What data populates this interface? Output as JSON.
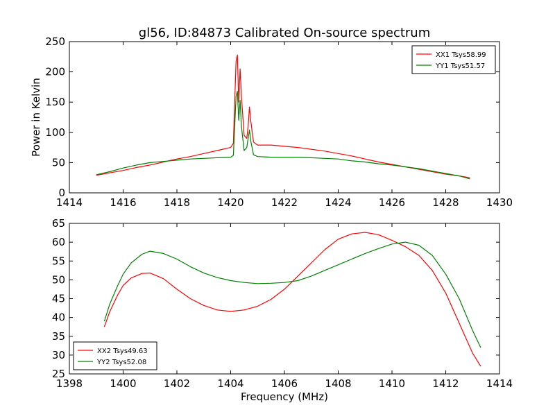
{
  "figure": {
    "title": "gl56, ID:84873 Calibrated On-source spectrum"
  },
  "chart_data": [
    {
      "type": "line",
      "title": "gl56, ID:84873 Calibrated On-source spectrum",
      "xlabel": "",
      "ylabel": "Power in Kelvin",
      "xlim": [
        1414,
        1430
      ],
      "ylim": [
        0,
        250
      ],
      "xticks": [
        1414,
        1416,
        1418,
        1420,
        1422,
        1424,
        1426,
        1428,
        1430
      ],
      "yticks": [
        0,
        50,
        100,
        150,
        200,
        250
      ],
      "grid": false,
      "legend_position": "upper-right",
      "series": [
        {
          "name": "XX1 Tsys58.99",
          "color": "#ff0000",
          "points": [
            [
              1415.0,
              29
            ],
            [
              1415.5,
              33
            ],
            [
              1416.0,
              37
            ],
            [
              1416.5,
              42
            ],
            [
              1417.0,
              46
            ],
            [
              1417.5,
              51
            ],
            [
              1418.0,
              56
            ],
            [
              1418.5,
              60
            ],
            [
              1419.0,
              65
            ],
            [
              1419.5,
              70
            ],
            [
              1420.0,
              75
            ],
            [
              1420.1,
              82
            ],
            [
              1420.15,
              150
            ],
            [
              1420.2,
              218
            ],
            [
              1420.25,
              228
            ],
            [
              1420.3,
              150
            ],
            [
              1420.35,
              205
            ],
            [
              1420.4,
              160
            ],
            [
              1420.5,
              95
            ],
            [
              1420.6,
              90
            ],
            [
              1420.65,
              110
            ],
            [
              1420.7,
              142
            ],
            [
              1420.75,
              118
            ],
            [
              1420.85,
              84
            ],
            [
              1421.0,
              79
            ],
            [
              1421.5,
              79
            ],
            [
              1422.0,
              77
            ],
            [
              1422.5,
              75
            ],
            [
              1423.0,
              72
            ],
            [
              1423.5,
              69
            ],
            [
              1424.0,
              65
            ],
            [
              1424.5,
              61
            ],
            [
              1425.0,
              56
            ],
            [
              1425.5,
              51
            ],
            [
              1426.0,
              47
            ],
            [
              1426.5,
              43
            ],
            [
              1427.0,
              39
            ],
            [
              1427.5,
              35
            ],
            [
              1428.0,
              31
            ],
            [
              1428.5,
              28
            ],
            [
              1428.9,
              25
            ]
          ]
        },
        {
          "name": "YY1 Tsys51.57",
          "color": "#008000",
          "points": [
            [
              1415.0,
              30
            ],
            [
              1415.5,
              35
            ],
            [
              1416.0,
              41
            ],
            [
              1416.5,
              46
            ],
            [
              1417.0,
              50
            ],
            [
              1417.5,
              52
            ],
            [
              1418.0,
              54
            ],
            [
              1418.5,
              56
            ],
            [
              1419.0,
              57
            ],
            [
              1419.5,
              58
            ],
            [
              1420.0,
              59
            ],
            [
              1420.1,
              62
            ],
            [
              1420.15,
              110
            ],
            [
              1420.2,
              160
            ],
            [
              1420.25,
              168
            ],
            [
              1420.3,
              120
            ],
            [
              1420.35,
              153
            ],
            [
              1420.4,
              110
            ],
            [
              1420.5,
              70
            ],
            [
              1420.6,
              75
            ],
            [
              1420.65,
              90
            ],
            [
              1420.7,
              104
            ],
            [
              1420.75,
              85
            ],
            [
              1420.85,
              63
            ],
            [
              1421.0,
              60
            ],
            [
              1421.5,
              59
            ],
            [
              1422.0,
              59
            ],
            [
              1422.5,
              59
            ],
            [
              1423.0,
              58
            ],
            [
              1423.5,
              57
            ],
            [
              1424.0,
              56
            ],
            [
              1424.5,
              53
            ],
            [
              1425.0,
              51
            ],
            [
              1425.5,
              48
            ],
            [
              1426.0,
              46
            ],
            [
              1426.5,
              43
            ],
            [
              1427.0,
              40
            ],
            [
              1427.5,
              36
            ],
            [
              1428.0,
              32
            ],
            [
              1428.5,
              28
            ],
            [
              1428.9,
              23
            ]
          ]
        }
      ]
    },
    {
      "type": "line",
      "title": "",
      "xlabel": "Frequency (MHz)",
      "ylabel": "",
      "xlim": [
        1398,
        1414
      ],
      "ylim": [
        25,
        65
      ],
      "xticks": [
        1398,
        1400,
        1402,
        1404,
        1406,
        1408,
        1410,
        1412,
        1414
      ],
      "yticks": [
        25,
        30,
        35,
        40,
        45,
        50,
        55,
        60,
        65
      ],
      "grid": false,
      "legend_position": "lower-left",
      "series": [
        {
          "name": "XX2 Tsys49.63",
          "color": "#ff0000",
          "points": [
            [
              1399.3,
              37.5
            ],
            [
              1399.5,
              41.5
            ],
            [
              1399.8,
              46.0
            ],
            [
              1400.0,
              48.5
            ],
            [
              1400.3,
              50.5
            ],
            [
              1400.7,
              51.7
            ],
            [
              1401.0,
              51.8
            ],
            [
              1401.5,
              50.3
            ],
            [
              1402.0,
              47.5
            ],
            [
              1402.5,
              45.0
            ],
            [
              1403.0,
              43.2
            ],
            [
              1403.5,
              42.0
            ],
            [
              1404.0,
              41.6
            ],
            [
              1404.5,
              42.0
            ],
            [
              1405.0,
              43.0
            ],
            [
              1405.5,
              44.8
            ],
            [
              1406.0,
              47.5
            ],
            [
              1406.5,
              51.0
            ],
            [
              1407.0,
              54.5
            ],
            [
              1407.5,
              58.0
            ],
            [
              1408.0,
              60.8
            ],
            [
              1408.5,
              62.2
            ],
            [
              1409.0,
              62.6
            ],
            [
              1409.5,
              62.0
            ],
            [
              1410.0,
              60.5
            ],
            [
              1410.5,
              58.8
            ],
            [
              1411.0,
              56.5
            ],
            [
              1411.5,
              52.5
            ],
            [
              1412.0,
              46.5
            ],
            [
              1412.5,
              38.5
            ],
            [
              1413.0,
              30.5
            ],
            [
              1413.3,
              27.0
            ]
          ]
        },
        {
          "name": "YY2 Tsys52.08",
          "color": "#008000",
          "points": [
            [
              1399.3,
              39.0
            ],
            [
              1399.5,
              43.5
            ],
            [
              1399.8,
              48.5
            ],
            [
              1400.0,
              51.5
            ],
            [
              1400.3,
              54.5
            ],
            [
              1400.7,
              56.8
            ],
            [
              1401.0,
              57.6
            ],
            [
              1401.5,
              57.0
            ],
            [
              1402.0,
              55.5
            ],
            [
              1402.5,
              53.5
            ],
            [
              1403.0,
              51.8
            ],
            [
              1403.5,
              50.6
            ],
            [
              1404.0,
              49.8
            ],
            [
              1404.5,
              49.3
            ],
            [
              1405.0,
              49.0
            ],
            [
              1405.5,
              49.1
            ],
            [
              1406.0,
              49.3
            ],
            [
              1406.5,
              49.8
            ],
            [
              1407.0,
              51.0
            ],
            [
              1407.5,
              52.5
            ],
            [
              1408.0,
              54.0
            ],
            [
              1408.5,
              55.5
            ],
            [
              1409.0,
              57.0
            ],
            [
              1409.5,
              58.3
            ],
            [
              1410.0,
              59.5
            ],
            [
              1410.5,
              60.0
            ],
            [
              1411.0,
              59.2
            ],
            [
              1411.5,
              56.5
            ],
            [
              1412.0,
              51.5
            ],
            [
              1412.5,
              45.0
            ],
            [
              1413.0,
              36.5
            ],
            [
              1413.3,
              32.0
            ]
          ]
        }
      ]
    }
  ]
}
